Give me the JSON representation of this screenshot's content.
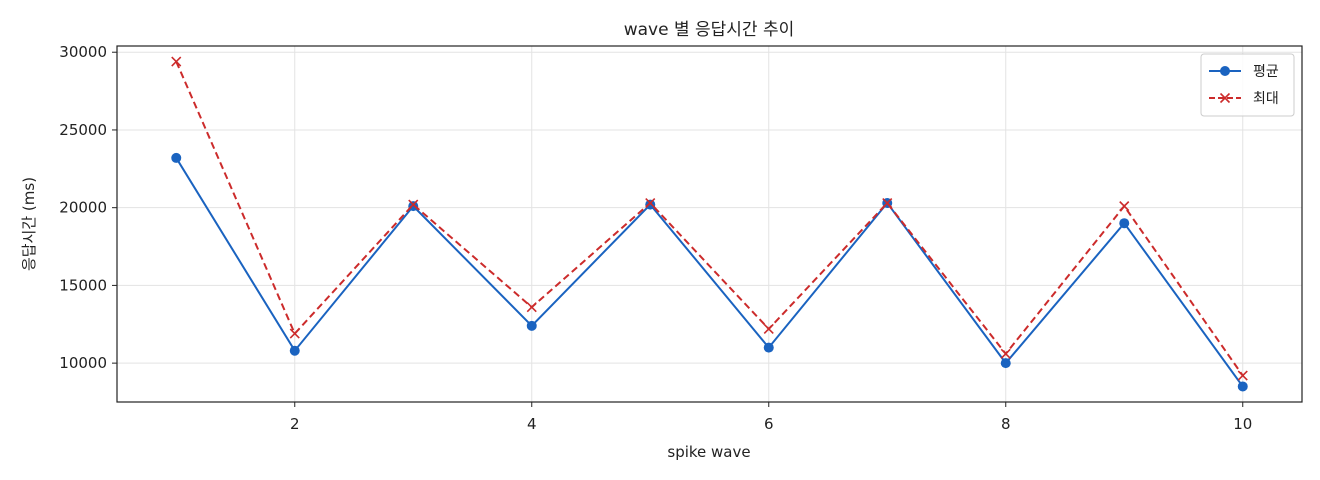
{
  "chart_data": {
    "type": "line",
    "title": "wave 별 응답시간 추이",
    "xlabel": "spike wave",
    "ylabel": "응답시간 (ms)",
    "x": [
      1,
      2,
      3,
      4,
      5,
      6,
      7,
      8,
      9,
      10
    ],
    "xlim": [
      0.5,
      10.5
    ],
    "ylim": [
      7500,
      30400
    ],
    "xticks": [
      2,
      4,
      6,
      8,
      10
    ],
    "yticks": [
      10000,
      15000,
      20000,
      25000,
      30000
    ],
    "grid": true,
    "legend_position": "top-right",
    "series": [
      {
        "name": "평균",
        "color": "#1a63c0",
        "line_style": "solid",
        "marker": "circle",
        "values": [
          23200,
          10800,
          20100,
          12400,
          20200,
          11000,
          20300,
          10000,
          19000,
          8500
        ]
      },
      {
        "name": "최대",
        "color": "#cc2b2b",
        "line_style": "dashed",
        "marker": "x",
        "values": [
          29400,
          11900,
          20200,
          13600,
          20300,
          12200,
          20300,
          10600,
          20100,
          9200
        ]
      }
    ]
  }
}
